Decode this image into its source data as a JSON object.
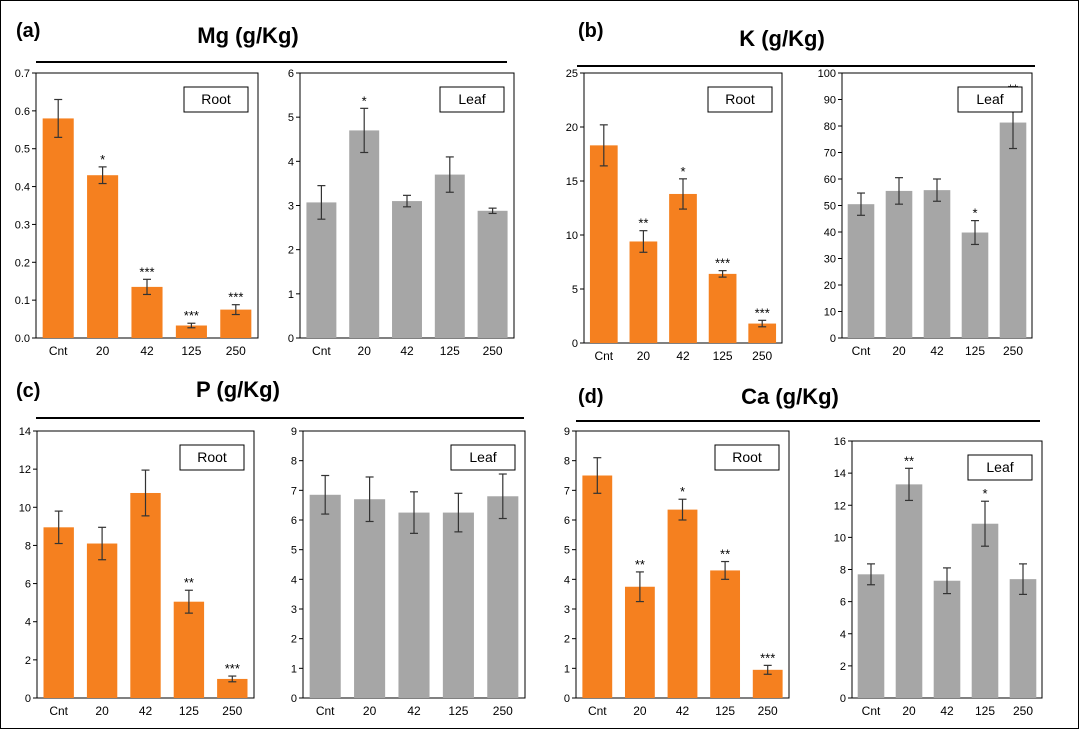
{
  "colors": {
    "root": "#F5801F",
    "leaf": "#A6A6A6",
    "axis": "#000000"
  },
  "chart_data": [
    {
      "type": "bar",
      "panel_label": "(a)",
      "element": "Mg (g/Kg)",
      "subplots": [
        {
          "organ": "Root",
          "categories": [
            "Cnt",
            "20",
            "42",
            "125",
            "250"
          ],
          "values": [
            0.58,
            0.43,
            0.135,
            0.033,
            0.075
          ],
          "errors": [
            0.05,
            0.022,
            0.02,
            0.006,
            0.013
          ],
          "significance": [
            "",
            "*",
            "***",
            "***",
            "***"
          ],
          "ylim": [
            0,
            0.7
          ],
          "yticks": [
            0,
            0.1,
            0.2,
            0.3,
            0.4,
            0.5,
            0.6,
            0.7
          ],
          "ytick_labels": [
            "0.0",
            "0.1",
            "0.2",
            "0.3",
            "0.4",
            "0.5",
            "0.6",
            "0.7"
          ]
        },
        {
          "organ": "Leaf",
          "categories": [
            "Cnt",
            "20",
            "42",
            "125",
            "250"
          ],
          "values": [
            3.07,
            4.7,
            3.1,
            3.7,
            2.88
          ],
          "errors": [
            0.38,
            0.5,
            0.13,
            0.4,
            0.06
          ],
          "significance": [
            "",
            "*",
            "",
            "",
            ""
          ],
          "ylim": [
            0,
            6
          ],
          "yticks": [
            0,
            1,
            2,
            3,
            4,
            5,
            6
          ],
          "ytick_labels": [
            "0",
            "1",
            "2",
            "3",
            "4",
            "5",
            "6"
          ]
        }
      ]
    },
    {
      "type": "bar",
      "panel_label": "(b)",
      "element": "K (g/Kg)",
      "subplots": [
        {
          "organ": "Root",
          "categories": [
            "Cnt",
            "20",
            "42",
            "125",
            "250"
          ],
          "values": [
            18.3,
            9.4,
            13.8,
            6.4,
            1.8
          ],
          "errors": [
            1.9,
            1.0,
            1.4,
            0.3,
            0.3
          ],
          "significance": [
            "",
            "**",
            "*",
            "***",
            "***"
          ],
          "ylim": [
            0,
            25
          ],
          "yticks": [
            0,
            5,
            10,
            15,
            20,
            25
          ],
          "ytick_labels": [
            "0",
            "5",
            "10",
            "15",
            "20",
            "25"
          ]
        },
        {
          "organ": "Leaf",
          "categories": [
            "Cnt",
            "20",
            "42",
            "125",
            "250"
          ],
          "values": [
            50.5,
            55.5,
            55.8,
            39.8,
            81.3
          ],
          "errors": [
            4.2,
            5.0,
            4.2,
            4.5,
            9.8
          ],
          "significance": [
            "",
            "",
            "",
            "*",
            "**"
          ],
          "ylim": [
            0,
            100
          ],
          "yticks": [
            0,
            10,
            20,
            30,
            40,
            50,
            60,
            70,
            80,
            90,
            100
          ],
          "ytick_labels": [
            "0",
            "10",
            "20",
            "30",
            "40",
            "50",
            "60",
            "70",
            "80",
            "90",
            "100"
          ]
        }
      ]
    },
    {
      "type": "bar",
      "panel_label": "(c)",
      "element": "P (g/Kg)",
      "subplots": [
        {
          "organ": "Root",
          "categories": [
            "Cnt",
            "20",
            "42",
            "125",
            "250"
          ],
          "values": [
            8.95,
            8.1,
            10.75,
            5.05,
            1.0
          ],
          "errors": [
            0.85,
            0.85,
            1.2,
            0.6,
            0.15
          ],
          "significance": [
            "",
            "",
            "",
            "**",
            "***"
          ],
          "ylim": [
            0,
            14
          ],
          "yticks": [
            0,
            2,
            4,
            6,
            8,
            10,
            12,
            14
          ],
          "ytick_labels": [
            "0",
            "2",
            "4",
            "6",
            "8",
            "10",
            "12",
            "14"
          ]
        },
        {
          "organ": "Leaf",
          "categories": [
            "Cnt",
            "20",
            "42",
            "125",
            "250"
          ],
          "values": [
            6.85,
            6.7,
            6.25,
            6.25,
            6.8
          ],
          "errors": [
            0.65,
            0.75,
            0.7,
            0.65,
            0.75
          ],
          "significance": [
            "",
            "",
            "",
            "",
            ""
          ],
          "ylim": [
            0,
            9
          ],
          "yticks": [
            0,
            1,
            2,
            3,
            4,
            5,
            6,
            7,
            8,
            9
          ],
          "ytick_labels": [
            "0",
            "1",
            "2",
            "3",
            "4",
            "5",
            "6",
            "7",
            "8",
            "9"
          ]
        }
      ]
    },
    {
      "type": "bar",
      "panel_label": "(d)",
      "element": "Ca (g/Kg)",
      "subplots": [
        {
          "organ": "Root",
          "categories": [
            "Cnt",
            "20",
            "42",
            "125",
            "250"
          ],
          "values": [
            7.5,
            3.75,
            6.35,
            4.3,
            0.95
          ],
          "errors": [
            0.6,
            0.5,
            0.35,
            0.3,
            0.15
          ],
          "significance": [
            "",
            "**",
            "*",
            "**",
            "***"
          ],
          "ylim": [
            0,
            9
          ],
          "yticks": [
            0,
            1,
            2,
            3,
            4,
            5,
            6,
            7,
            8,
            9
          ],
          "ytick_labels": [
            "0",
            "1",
            "2",
            "3",
            "4",
            "5",
            "6",
            "7",
            "8",
            "9"
          ]
        },
        {
          "organ": "Leaf",
          "categories": [
            "Cnt",
            "20",
            "42",
            "125",
            "250"
          ],
          "values": [
            7.7,
            13.3,
            7.3,
            10.85,
            7.4
          ],
          "errors": [
            0.65,
            1.0,
            0.8,
            1.4,
            0.95
          ],
          "significance": [
            "",
            "**",
            "",
            "*",
            ""
          ],
          "ylim": [
            0,
            16
          ],
          "yticks": [
            0,
            2,
            4,
            6,
            8,
            10,
            12,
            14,
            16
          ],
          "ytick_labels": [
            "0",
            "2",
            "4",
            "6",
            "8",
            "10",
            "12",
            "14",
            "16"
          ]
        }
      ]
    }
  ]
}
